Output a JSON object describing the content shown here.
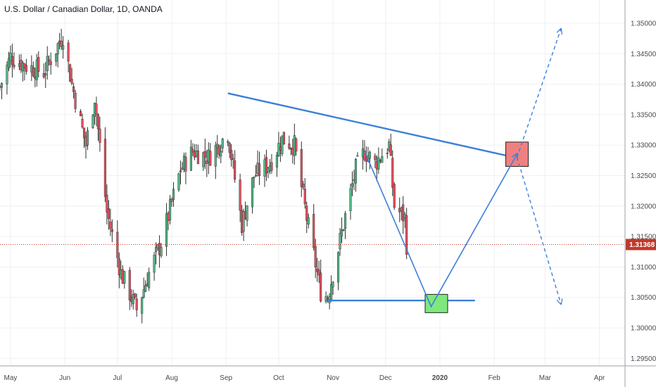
{
  "header": {
    "title": "U.S. Dollar / Canadian Dollar, 1D, OANDA"
  },
  "colors": {
    "up": "#53b987",
    "down": "#eb4d5c",
    "wick": "#2f2f2f",
    "trend": "#3d7fd9",
    "price_line": "#c0392b",
    "red_box": "#f08080",
    "green_box": "#7ee87e"
  },
  "price_tag": "1.31368",
  "chart_data": {
    "type": "candlestick",
    "title": "U.S. Dollar / Canadian Dollar, 1D, OANDA",
    "x_tick_labels": [
      "May",
      "Jun",
      "Jul",
      "Aug",
      "Sep",
      "Oct",
      "Nov",
      "Dec",
      "2020",
      "Feb",
      "Mar",
      "Apr"
    ],
    "y_tick_labels": [
      "1.35000",
      "1.34500",
      "1.34000",
      "1.33500",
      "1.33000",
      "1.32500",
      "1.32000",
      "1.31500",
      "1.31000",
      "1.30500",
      "1.30000",
      "1.29500"
    ],
    "ylim": [
      1.2925,
      1.3525
    ],
    "last_price": 1.31368,
    "series_anchors": [
      {
        "date": "2019-04-25",
        "close": 1.3395
      },
      {
        "date": "2019-05-01",
        "close": 1.3445
      },
      {
        "date": "2019-05-10",
        "close": 1.343
      },
      {
        "date": "2019-05-20",
        "close": 1.342
      },
      {
        "date": "2019-05-31",
        "close": 1.348
      },
      {
        "date": "2019-06-05",
        "close": 1.34
      },
      {
        "date": "2019-06-13",
        "close": 1.33
      },
      {
        "date": "2019-06-18",
        "close": 1.338
      },
      {
        "date": "2019-06-25",
        "close": 1.319
      },
      {
        "date": "2019-07-03",
        "close": 1.309
      },
      {
        "date": "2019-07-12",
        "close": 1.303
      },
      {
        "date": "2019-07-19",
        "close": 1.309
      },
      {
        "date": "2019-07-26",
        "close": 1.314
      },
      {
        "date": "2019-08-06",
        "close": 1.326
      },
      {
        "date": "2019-08-13",
        "close": 1.329
      },
      {
        "date": "2019-08-22",
        "close": 1.328
      },
      {
        "date": "2019-09-02",
        "close": 1.332
      },
      {
        "date": "2019-09-10",
        "close": 1.317
      },
      {
        "date": "2019-09-17",
        "close": 1.325
      },
      {
        "date": "2019-09-26",
        "close": 1.327
      },
      {
        "date": "2019-10-03",
        "close": 1.331
      },
      {
        "date": "2019-10-10",
        "close": 1.33
      },
      {
        "date": "2019-10-17",
        "close": 1.318
      },
      {
        "date": "2019-10-25",
        "close": 1.306
      },
      {
        "date": "2019-10-29",
        "close": 1.305
      },
      {
        "date": "2019-11-07",
        "close": 1.317
      },
      {
        "date": "2019-11-14",
        "close": 1.326
      },
      {
        "date": "2019-11-19",
        "close": 1.329
      },
      {
        "date": "2019-11-25",
        "close": 1.327
      },
      {
        "date": "2019-12-03",
        "close": 1.33
      },
      {
        "date": "2019-12-06",
        "close": 1.32
      },
      {
        "date": "2019-12-12",
        "close": 1.318
      },
      {
        "date": "2019-12-13",
        "close": 1.3137
      }
    ],
    "annotations": [
      {
        "type": "trendline",
        "from": {
          "date": "2019-09-02",
          "price": 1.3385
        },
        "to": {
          "date": "2020-02-20",
          "price": 1.3275
        }
      },
      {
        "type": "hline",
        "price": 1.3045,
        "from": "2019-10-29",
        "to": "2020-01-21"
      },
      {
        "type": "rect",
        "color": "red",
        "date": "2020-02-14",
        "price_top": 1.3305,
        "price_bottom": 1.3265
      },
      {
        "type": "rect",
        "color": "green",
        "date": "2019-12-30",
        "price_top": 1.3055,
        "price_bottom": 1.3025
      },
      {
        "type": "path",
        "style": "solid",
        "points": [
          {
            "date": "2019-11-19",
            "price": 1.329
          },
          {
            "date": "2019-12-27",
            "price": 1.3035
          },
          {
            "date": "2020-02-14",
            "price": 1.3285
          }
        ]
      },
      {
        "type": "arrow",
        "style": "dashed",
        "from": {
          "date": "2020-02-14",
          "price": 1.328
        },
        "to": {
          "date": "2020-03-10",
          "price": 1.349
        }
      },
      {
        "type": "arrow",
        "style": "dashed",
        "from": {
          "date": "2020-02-14",
          "price": 1.328
        },
        "to": {
          "date": "2020-03-10",
          "price": 1.304
        }
      }
    ]
  }
}
